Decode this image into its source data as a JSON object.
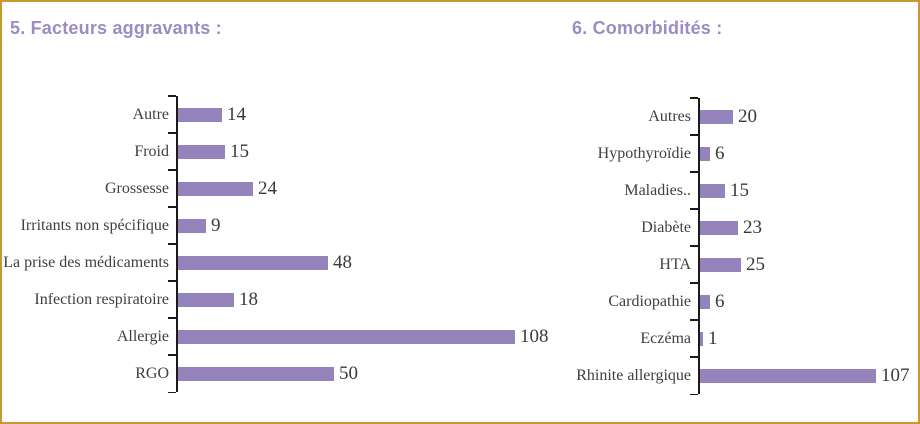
{
  "page": {
    "border_color": "#c9962f",
    "background_color": "#ffffff",
    "axis_color": "#1a1a1a",
    "text_color": "#3f3f3f"
  },
  "chart_data": [
    {
      "type": "bar",
      "orientation": "horizontal",
      "title": "5. Facteurs aggravants :",
      "title_color": "#9c8cc4",
      "bar_color": "#9484bb",
      "categories": [
        "Autre",
        "Froid",
        "Grossesse",
        "Irritants non spécifique",
        "La prise des médicaments",
        "Infection respiratoire",
        "Allergie",
        "RGO"
      ],
      "values": [
        14,
        15,
        24,
        9,
        48,
        18,
        108,
        50
      ],
      "value_labels_shown": true,
      "xlim": [
        0,
        108
      ],
      "grid": false,
      "legend": false
    },
    {
      "type": "bar",
      "orientation": "horizontal",
      "title": "6. Comorbidités :",
      "title_color": "#9c8cc4",
      "bar_color": "#9484bb",
      "categories": [
        "Autres",
        "Hypothyroïdie",
        "Maladies..",
        "Diabète",
        "HTA",
        "Cardiopathie",
        "Eczéma",
        "Rhinite allergique"
      ],
      "values": [
        20,
        6,
        15,
        23,
        25,
        6,
        1,
        107
      ],
      "value_labels_shown": true,
      "xlim": [
        0,
        107
      ],
      "grid": false,
      "legend": false
    }
  ]
}
